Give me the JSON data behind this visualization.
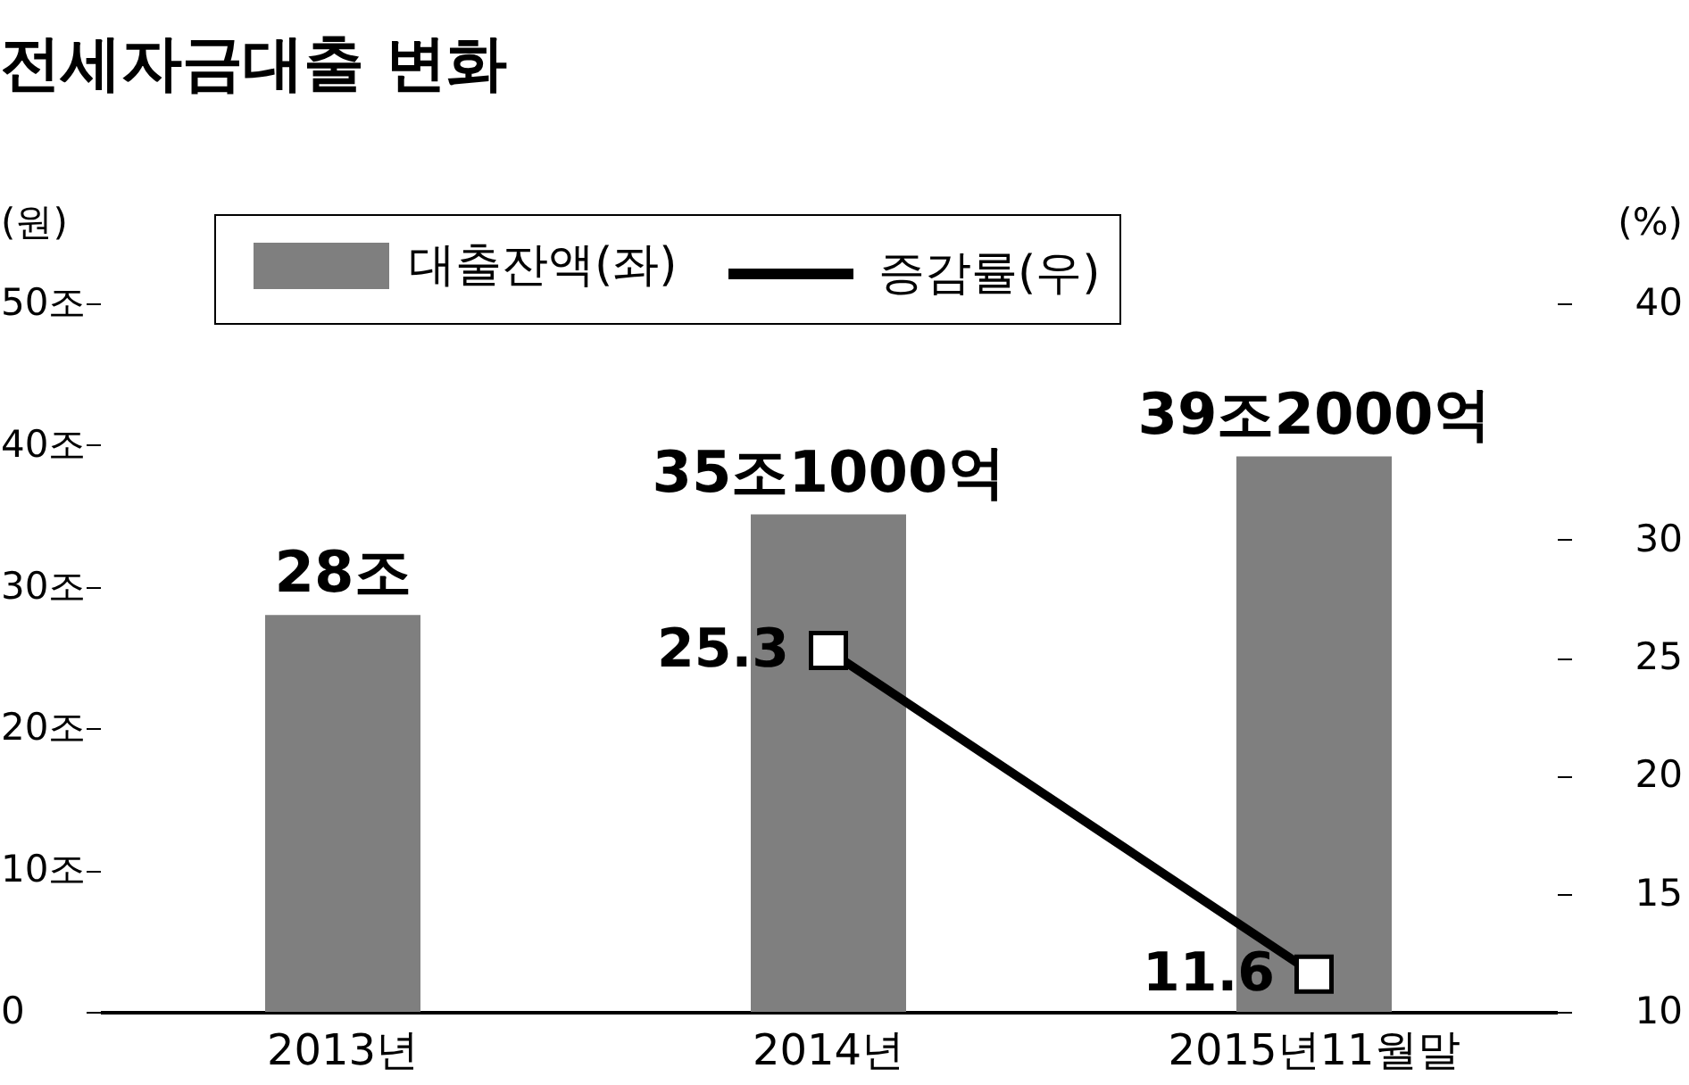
{
  "chart_data": {
    "type": "bar",
    "title": "전세자금대출 변화",
    "ylabel": "(원)",
    "y2label": "(%)",
    "categories": [
      "2013년",
      "2014년",
      "2015년11월말"
    ],
    "series": [
      {
        "name": "대출잔액(좌)",
        "color": "#7f7f7f",
        "values": [
          28,
          35.1,
          39.2
        ],
        "value_labels": [
          "28조",
          "35조1000억",
          "39조2000억"
        ]
      },
      {
        "name": "증감률(우)",
        "type": "line",
        "axis": "y2",
        "color": "#000000",
        "values": [
          null,
          25.3,
          11.6
        ],
        "value_labels": [
          null,
          "25.3",
          "11.6"
        ]
      }
    ],
    "ylim": [
      0,
      50
    ],
    "yticks": [
      0,
      {
        "value": 10,
        "label": "10조"
      },
      {
        "value": 20,
        "label": "20조"
      },
      {
        "value": 30,
        "label": "30조"
      },
      {
        "value": 40,
        "label": "40조"
      },
      {
        "value": 50,
        "label": "50조"
      }
    ],
    "y2lim": [
      10,
      40
    ],
    "y2ticks": [
      10,
      15,
      20,
      25,
      30,
      40
    ],
    "legend": "top",
    "marker": "square",
    "line_style": "solid"
  }
}
